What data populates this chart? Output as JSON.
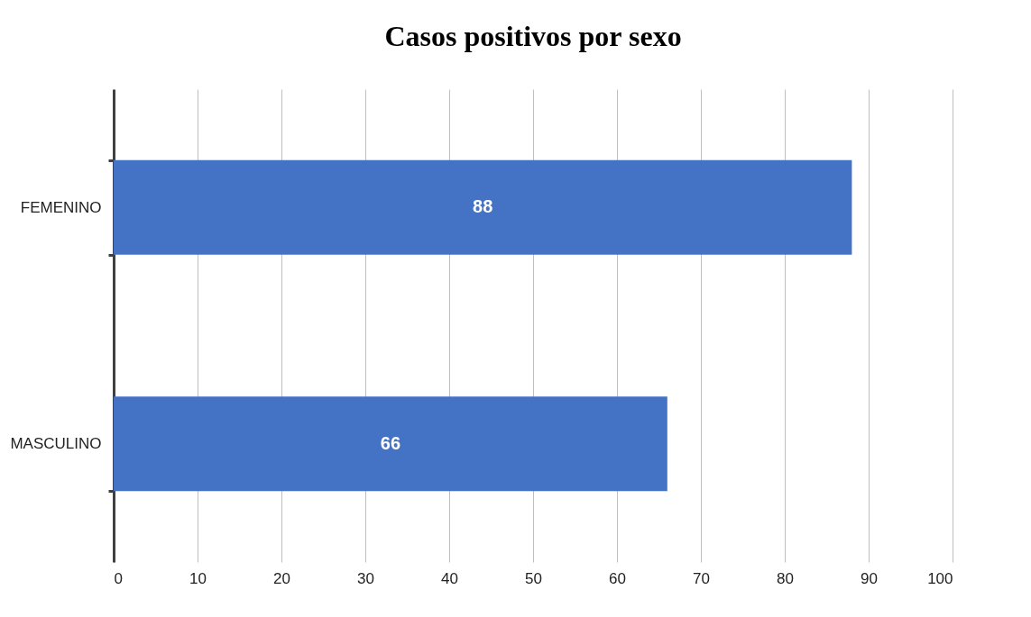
{
  "chart_data": {
    "type": "bar",
    "title": "Casos positivos por sexo",
    "orientation": "horizontal",
    "categories": [
      "FEMENINO",
      "MASCULINO"
    ],
    "values": [
      88,
      66
    ],
    "color": "#4472c4",
    "xlim": [
      0,
      100
    ],
    "xticks": [
      0,
      10,
      20,
      30,
      40,
      50,
      60,
      70,
      80,
      90,
      100
    ],
    "grid": "x",
    "data_labels": true
  }
}
